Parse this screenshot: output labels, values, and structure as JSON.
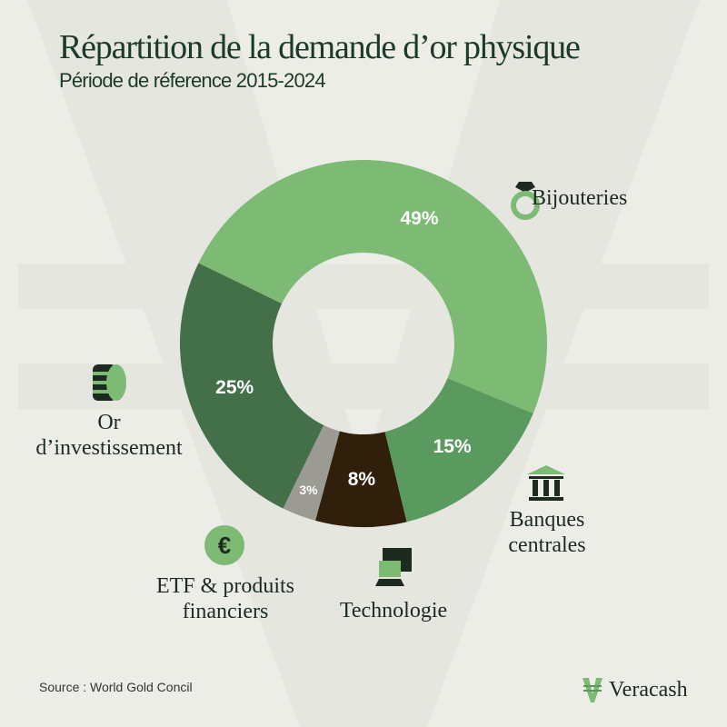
{
  "chart_data": {
    "type": "pie",
    "variant": "donut",
    "title": "Répartition de la demande d’or physique",
    "subtitle": "Période de réference 2015-2024",
    "slices": [
      {
        "label": "Bijouteries",
        "value": 49,
        "display": "49%",
        "color": "#7dba74",
        "icon": "ring-icon"
      },
      {
        "label": "Banques centrales",
        "value": 15,
        "display": "15%",
        "color": "#5b9a5f",
        "icon": "bank-icon"
      },
      {
        "label": "Technologie",
        "value": 8,
        "display": "8%",
        "color": "#2f1f0b",
        "icon": "computer-icon"
      },
      {
        "label": "ETF & produits financiers",
        "value": 3,
        "display": "3%",
        "color": "#9b9b93",
        "icon": "euro-coin-icon"
      },
      {
        "label": "Or d’investissement",
        "value": 25,
        "display": "25%",
        "color": "#436f49",
        "icon": "coin-stack-icon"
      }
    ]
  },
  "labels": {
    "bijouteries": "Bijouteries",
    "banques_1": "Banques",
    "banques_2": "centrales",
    "technologie": "Technologie",
    "etf_1": "ETF & produits",
    "etf_2": "financiers",
    "or_1": "Or",
    "or_2": "d’investissement"
  },
  "footer": {
    "source": "Source : World Gold Concil",
    "brand": "Veracash"
  }
}
